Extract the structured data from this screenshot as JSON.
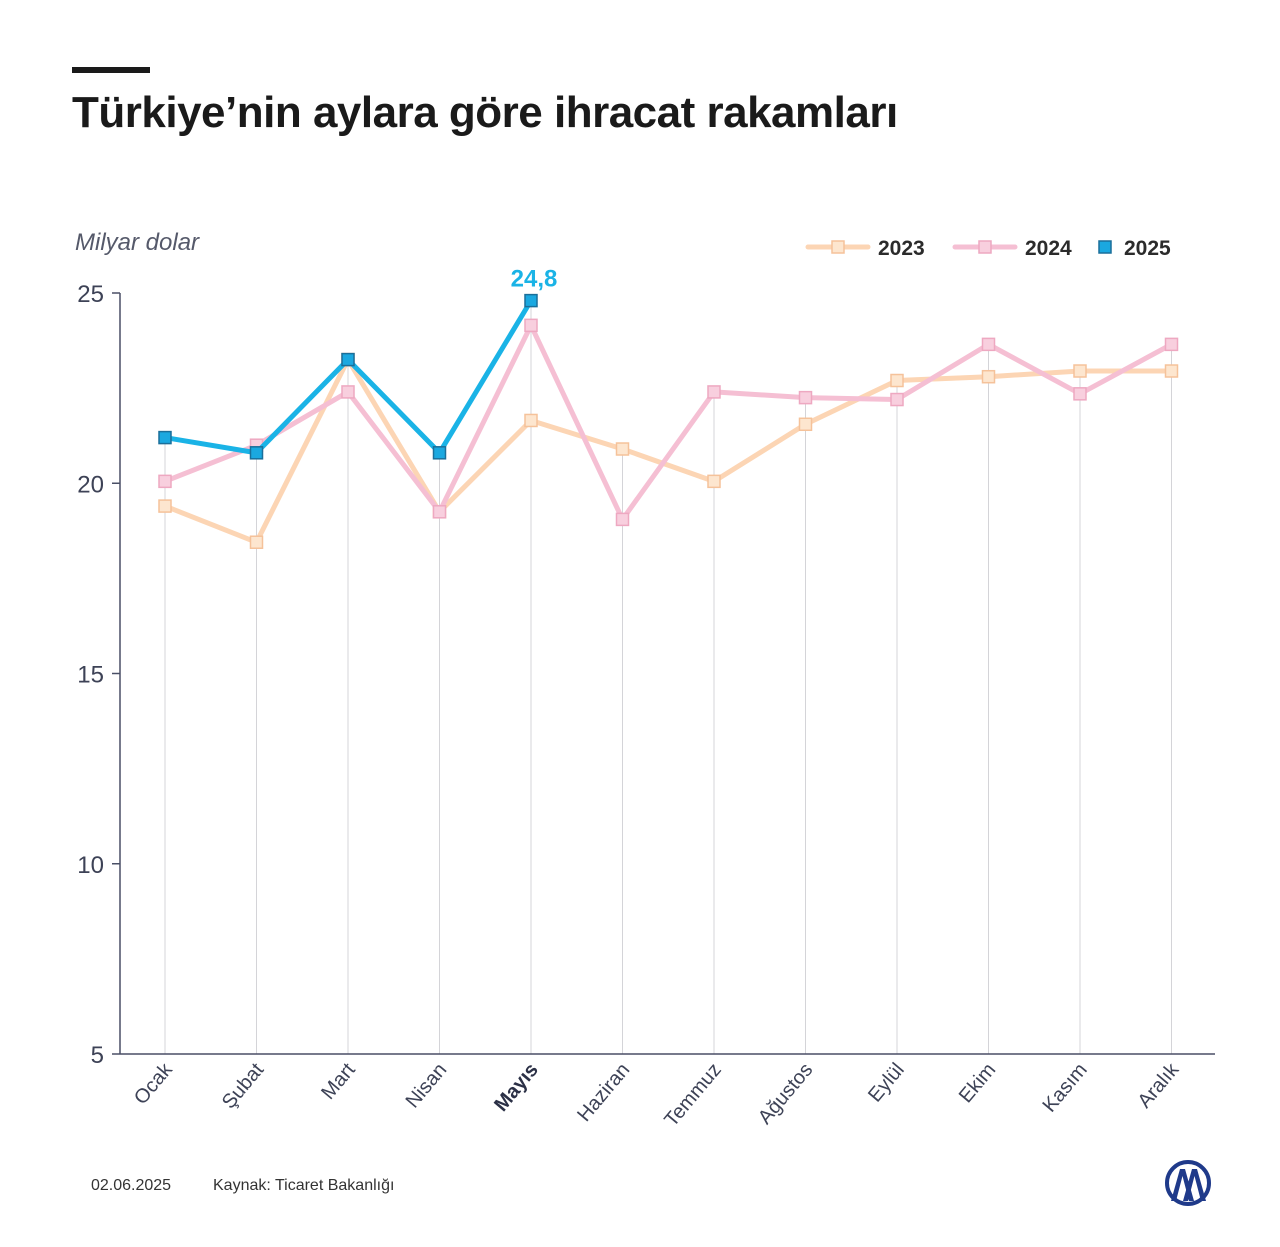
{
  "header": {
    "title": "Türkiye’nin aylara göre ihracat rakamları",
    "unit": "Milyar dolar"
  },
  "footer": {
    "date": "02.06.2025",
    "source": "Kaynak: Ticaret Bakanlığı"
  },
  "logo": {
    "text": "AA",
    "icon": "aa-logo-icon",
    "color": "#1f3a8a"
  },
  "chart_data": {
    "type": "line",
    "ylim": [
      5,
      25
    ],
    "yticks": [
      "5",
      "10",
      "15",
      "20",
      "25"
    ],
    "categories": [
      "Ocak",
      "Şubat",
      "Mart",
      "Nisan",
      "Mayıs",
      "Haziran",
      "Temmuz",
      "Ağustos",
      "Eylül",
      "Ekim",
      "Kasım",
      "Aralık"
    ],
    "highlight_category": "Mayıs",
    "legend_position": "top-right",
    "grid": "vertical lines per month",
    "series": [
      {
        "name": "2023",
        "color": "#fcd5b4",
        "marker_fill": "#fde6cf",
        "marker_stroke": "#f5c29a",
        "values": [
          19.4,
          18.45,
          23.25,
          19.25,
          21.65,
          20.9,
          20.05,
          21.55,
          22.7,
          22.8,
          22.95,
          22.95
        ]
      },
      {
        "name": "2024",
        "color": "#f5bfd3",
        "marker_fill": "#f8cfde",
        "marker_stroke": "#eea8c1",
        "values": [
          20.05,
          21.0,
          22.4,
          19.25,
          24.15,
          19.05,
          22.4,
          22.25,
          22.2,
          23.65,
          22.35,
          23.65
        ]
      },
      {
        "name": "2025",
        "color": "#1ab3e6",
        "marker_fill": "#1aa8e0",
        "marker_stroke": "#1a6f9a",
        "values": [
          21.2,
          20.8,
          23.25,
          20.8,
          24.8,
          null,
          null,
          null,
          null,
          null,
          null,
          null
        ]
      }
    ],
    "annotation": {
      "series": "2025",
      "category": "Mayıs",
      "text": "24,8",
      "color": "#1ab3e6"
    }
  }
}
